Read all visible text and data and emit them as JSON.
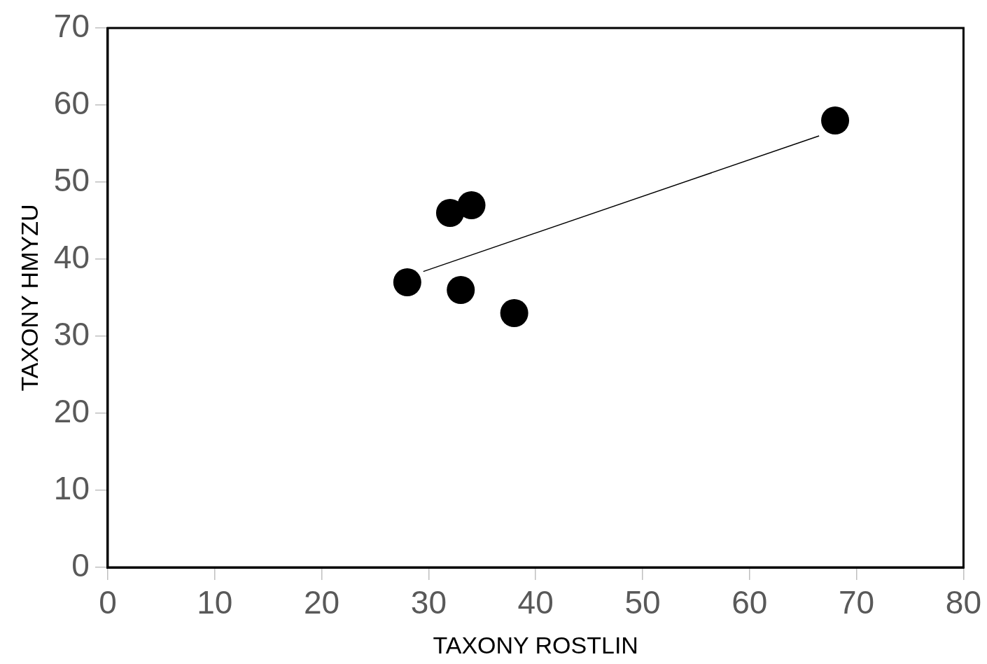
{
  "chart_data": {
    "type": "scatter",
    "xlabel": "TAXONY ROSTLIN",
    "ylabel": "TAXONY HMYZU",
    "xlim": [
      0,
      80
    ],
    "xticks": [
      0,
      10,
      20,
      30,
      40,
      50,
      60,
      70,
      80
    ],
    "ylim": [
      0,
      70
    ],
    "yticks": [
      0,
      10,
      20,
      30,
      40,
      50,
      60,
      70
    ],
    "grid": false,
    "legend": false,
    "marker": "circle",
    "series": [
      {
        "color": "#000000",
        "x": [
          28,
          32,
          34,
          33,
          38,
          68
        ],
        "values": [
          37,
          46,
          47,
          36,
          33,
          58
        ]
      },
      {
        "type": "line",
        "color": "#000000",
        "marker": "none",
        "line_style": "solid",
        "x": [
          29.5,
          66.5
        ],
        "values": [
          38.4,
          56.0
        ]
      }
    ]
  }
}
